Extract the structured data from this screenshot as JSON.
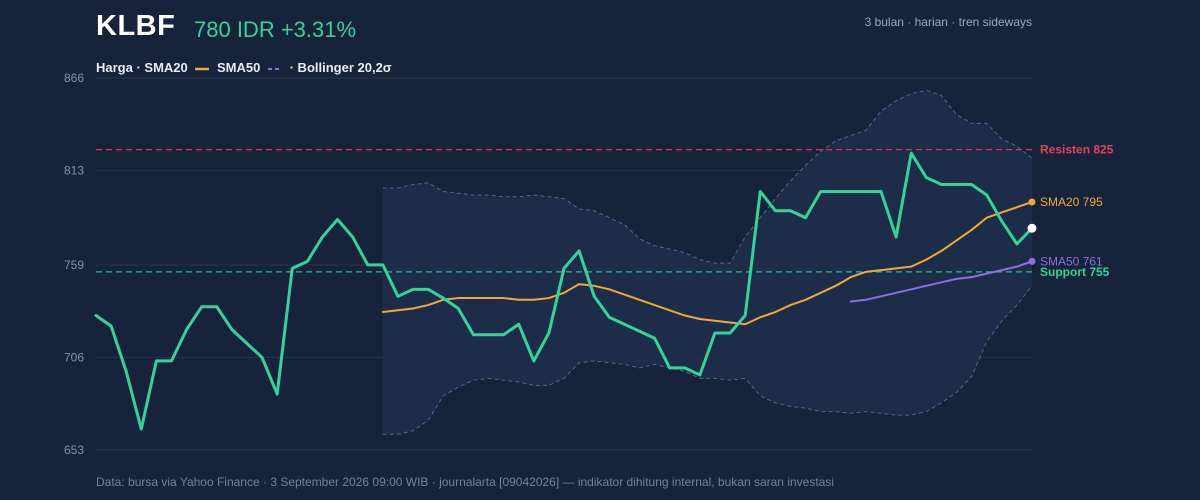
{
  "header": {
    "ticker": "KLBF",
    "price": "780 IDR +3.31%",
    "meta": "3 bulan · harian · tren sideways"
  },
  "legend": {
    "item1": "Harga · SMA20",
    "item2": "SMA50",
    "item3": "· Bollinger 20,2σ"
  },
  "footer": "Data: bursa via Yahoo Finance · 3 September 2026 09:00 WIB · journalarta [09042026] — indikator dihitung internal, bukan saran investasi",
  "colors": {
    "background": "#16233a",
    "price": "#34d399",
    "sma20": "#f0a93b",
    "sma50": "#8b6ee6",
    "resistance": "#e0455f",
    "support": "#34d399",
    "band": "#1e2e4b",
    "grid": "#26344d"
  },
  "chart_data": {
    "type": "line",
    "title": "KLBF",
    "ylim": [
      653,
      866
    ],
    "yticks": [
      "866",
      "813",
      "759",
      "706",
      "653"
    ],
    "x": [
      0,
      1,
      2,
      3,
      4,
      5,
      6,
      7,
      8,
      9,
      10,
      11,
      12,
      13,
      14,
      15,
      16,
      17,
      18,
      19,
      20,
      21,
      22,
      23,
      24,
      25,
      26,
      27,
      28,
      29,
      30,
      31,
      32,
      33,
      34,
      35,
      36,
      37,
      38,
      39,
      40,
      41,
      42,
      43,
      44,
      45,
      46,
      47,
      48,
      49,
      50,
      51,
      52,
      53,
      54,
      55,
      56,
      57,
      58,
      59,
      60,
      61,
      62
    ],
    "series": [
      {
        "key": "price",
        "values": [
          730,
          724,
          698,
          665,
          704,
          704,
          722,
          735,
          735,
          722,
          714,
          706,
          685,
          757,
          761,
          775,
          785,
          775,
          759,
          759,
          741,
          745,
          745,
          740,
          734,
          719,
          719,
          719,
          725,
          704,
          720,
          757,
          767,
          741,
          729,
          725,
          721,
          717,
          700,
          700,
          696,
          720,
          720,
          730,
          801,
          790,
          790,
          786,
          801,
          801,
          801,
          801,
          801,
          775,
          823,
          809,
          805,
          805,
          805,
          799,
          784,
          771,
          780
        ]
      },
      {
        "key": "bb_upper",
        "values": [
          null,
          null,
          null,
          null,
          null,
          null,
          null,
          null,
          null,
          null,
          null,
          null,
          null,
          null,
          null,
          null,
          null,
          null,
          null,
          803,
          803,
          805,
          806,
          801,
          800,
          799,
          799,
          798,
          798,
          799,
          798,
          797,
          791,
          790,
          786,
          782,
          774,
          770,
          768,
          766,
          762,
          760,
          760,
          775,
          786,
          797,
          807,
          816,
          824,
          830,
          833,
          836,
          847,
          853,
          857,
          859,
          856,
          845,
          840,
          840,
          831,
          827,
          820
        ]
      },
      {
        "key": "bb_lower",
        "values": [
          null,
          null,
          null,
          null,
          null,
          null,
          null,
          null,
          null,
          null,
          null,
          null,
          null,
          null,
          null,
          null,
          null,
          null,
          null,
          662,
          662,
          664,
          670,
          684,
          689,
          693,
          694,
          693,
          692,
          690,
          690,
          694,
          703,
          704,
          703,
          702,
          700,
          702,
          700,
          698,
          694,
          694,
          693,
          694,
          684,
          680,
          678,
          677,
          675,
          675,
          674,
          675,
          674,
          673,
          673,
          675,
          680,
          686,
          695,
          715,
          727,
          736,
          747
        ]
      },
      {
        "key": "sma20",
        "name": "SMA20",
        "values": [
          null,
          null,
          null,
          null,
          null,
          null,
          null,
          null,
          null,
          null,
          null,
          null,
          null,
          null,
          null,
          null,
          null,
          null,
          null,
          732,
          733,
          734,
          736,
          739,
          740,
          740,
          740,
          740,
          739,
          739,
          740,
          743,
          748,
          747,
          745,
          742,
          739,
          736,
          733,
          730,
          728,
          727,
          726,
          725,
          729,
          732,
          736,
          739,
          743,
          747,
          752,
          755,
          756,
          757,
          758,
          762,
          767,
          773,
          779,
          786,
          789,
          792,
          795
        ]
      },
      {
        "key": "sma50",
        "name": "SMA50",
        "values": [
          null,
          null,
          null,
          null,
          null,
          null,
          null,
          null,
          null,
          null,
          null,
          null,
          null,
          null,
          null,
          null,
          null,
          null,
          null,
          null,
          null,
          null,
          null,
          null,
          null,
          null,
          null,
          null,
          null,
          null,
          null,
          null,
          null,
          null,
          null,
          null,
          null,
          null,
          null,
          null,
          null,
          null,
          null,
          null,
          null,
          null,
          null,
          null,
          null,
          null,
          738,
          739,
          741,
          743,
          745,
          747,
          749,
          751,
          752,
          754,
          756,
          758,
          761
        ]
      }
    ],
    "lines": [
      {
        "key": "resistance",
        "label": "Resisten 825",
        "value": 825
      },
      {
        "key": "support",
        "label": "Support 755",
        "value": 755
      }
    ],
    "end_labels": {
      "sma20": "SMA20 795",
      "sma50": "SMA50 761"
    },
    "grid": true
  }
}
